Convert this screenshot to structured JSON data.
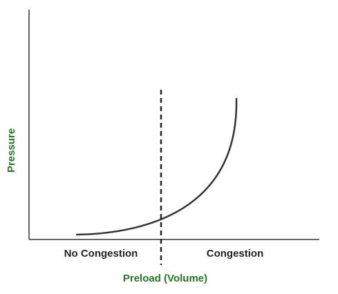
{
  "chart_data": {
    "type": "line",
    "title": "",
    "xlabel": "Preload (Volume)",
    "ylabel": "Pressure",
    "ticks_shown": false,
    "grid": false,
    "regions": [
      "No Congestion",
      "Congestion"
    ],
    "divider": {
      "style": "dashed"
    },
    "curve": {
      "shape": "exponential rise",
      "color": "#333333"
    }
  },
  "colors": {
    "axis_label": "#1f7a1f",
    "region_label": "#222222",
    "axes": "#333333",
    "curve": "#333333",
    "divider": "#222222"
  }
}
